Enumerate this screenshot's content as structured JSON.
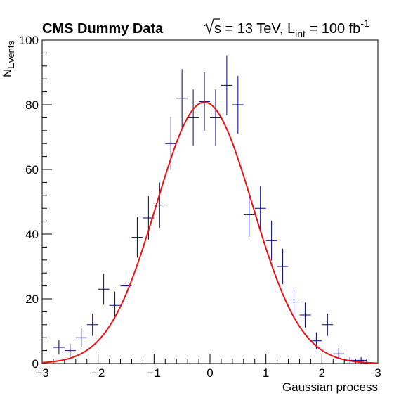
{
  "chart_data": {
    "type": "scatter",
    "title": "CMS Dummy Data",
    "energy_label": "s = 13 TeV, L",
    "energy_sub": "int",
    "lumi_value": " = 100 fb",
    "lumi_sup": "-1",
    "xlabel": "Gaussian process",
    "ylabel_main": "N",
    "ylabel_sub": "Events",
    "xlim": [
      -3,
      3
    ],
    "ylim": [
      0,
      100
    ],
    "x_ticks": [
      -3,
      -2,
      -1,
      0,
      1,
      2,
      3
    ],
    "x_tick_labels": [
      "−3",
      "−2",
      "−1",
      "0",
      "1",
      "2",
      "3"
    ],
    "y_ticks": [
      0,
      20,
      40,
      60,
      80,
      100
    ],
    "y_tick_labels": [
      "0",
      "20",
      "40",
      "60",
      "80",
      "100"
    ],
    "grid": false,
    "bin_width": 0.2,
    "colors": {
      "data": "#000080",
      "fit": "#ee1111"
    },
    "series": [
      {
        "type": "errorbar",
        "x": [
          -2.7,
          -2.5,
          -2.3,
          -2.1,
          -1.9,
          -1.7,
          -1.5,
          -1.3,
          -1.1,
          -0.9,
          -0.7,
          -0.5,
          -0.3,
          -0.1,
          0.1,
          0.3,
          0.5,
          0.7,
          0.9,
          1.1,
          1.3,
          1.5,
          1.7,
          1.9,
          2.1,
          2.3,
          2.5,
          2.7,
          2.9
        ],
        "y": [
          5,
          4,
          8,
          12,
          23,
          18,
          24,
          39,
          45,
          49,
          68,
          82,
          76,
          81,
          76,
          86,
          80,
          46,
          48,
          38,
          30,
          19,
          15,
          7,
          12,
          3,
          1,
          1,
          0
        ]
      },
      {
        "type": "line",
        "fit": "gaussian",
        "amplitude": 80.8,
        "mean": -0.1,
        "sigma": 0.86
      }
    ]
  }
}
